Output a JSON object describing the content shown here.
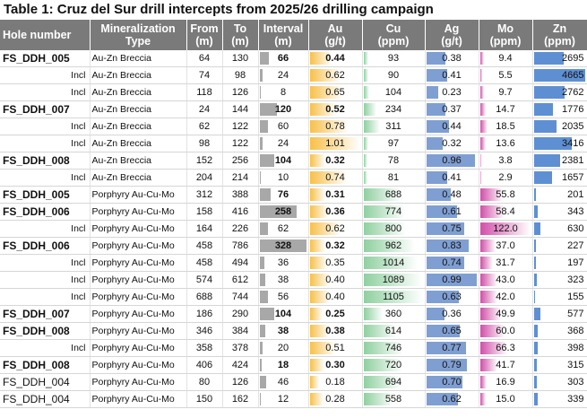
{
  "title": "Table 1: Cruz del Sur drill intercepts from 2025/26 drilling campaign",
  "headers": {
    "hole": "Hole number",
    "type1": "Mineralization",
    "type2": "Type",
    "from1": "From",
    "from2": "(m)",
    "to1": "To",
    "to2": "(m)",
    "int1": "Interval",
    "int2": "(m)",
    "au1": "Au",
    "au2": "(g/t)",
    "cu1": "Cu",
    "cu2": "(ppm)",
    "ag1": "Ag",
    "ag2": "(g/t)",
    "mo1": "Mo",
    "mo2": "(ppm)",
    "zn1": "Zn",
    "zn2": "(ppm)"
  },
  "colors": {
    "interval": "#a8a8a8",
    "au": "#f7c04a",
    "cu": "#8fd0a0",
    "ag": "#7f9fd3",
    "mo": "#d14fa8",
    "zn": "#5f8fd3"
  },
  "rows": [
    {
      "hole": "FS_DDH_005",
      "kind": "main",
      "type": "Au-Zn Breccia",
      "from": "64",
      "to": "130",
      "interval": "66",
      "au": "0.44",
      "cu": "93",
      "ag": "0.38",
      "mo": "9.4",
      "zn": "2695"
    },
    {
      "hole": "Incl",
      "kind": "incl",
      "type": "Au-Zn Breccia",
      "from": "74",
      "to": "98",
      "interval": "24",
      "au": "0.62",
      "cu": "90",
      "ag": "0.41",
      "mo": "5.5",
      "zn": "4665"
    },
    {
      "hole": "Incl",
      "kind": "incl",
      "type": "Au-Zn Breccia",
      "from": "118",
      "to": "126",
      "interval": "8",
      "au": "0.65",
      "cu": "104",
      "ag": "0.23",
      "mo": "9.7",
      "zn": "2762"
    },
    {
      "hole": "FS_DDH_007",
      "kind": "main",
      "type": "Au-Zn Breccia",
      "from": "24",
      "to": "144",
      "interval": "120",
      "au": "0.52",
      "cu": "234",
      "ag": "0.37",
      "mo": "14.7",
      "zn": "1776"
    },
    {
      "hole": "Incl",
      "kind": "incl",
      "type": "Au-Zn Breccia",
      "from": "62",
      "to": "122",
      "interval": "60",
      "au": "0.78",
      "cu": "311",
      "ag": "0.44",
      "mo": "18.5",
      "zn": "2035"
    },
    {
      "hole": "Incl",
      "kind": "incl",
      "type": "Au-Zn Breccia",
      "from": "98",
      "to": "122",
      "interval": "24",
      "au": "1.01",
      "cu": "97",
      "ag": "0.32",
      "mo": "13.6",
      "zn": "3416"
    },
    {
      "hole": "FS_DDH_008",
      "kind": "main",
      "type": "Au-Zn Breccia",
      "from": "152",
      "to": "256",
      "interval": "104",
      "au": "0.32",
      "cu": "78",
      "ag": "0.96",
      "mo": "3.8",
      "zn": "2381"
    },
    {
      "hole": "Incl",
      "kind": "incl",
      "type": "Au-Zn Breccia",
      "from": "204",
      "to": "214",
      "interval": "10",
      "au": "0.74",
      "cu": "81",
      "ag": "0.41",
      "mo": "2.9",
      "zn": "1657"
    },
    {
      "hole": "FS_DDH_005",
      "kind": "main",
      "type": "Porphyry Au-Cu-Mo",
      "from": "312",
      "to": "388",
      "interval": "76",
      "au": "0.31",
      "cu": "688",
      "ag": "0.48",
      "mo": "55.8",
      "zn": "201"
    },
    {
      "hole": "FS_DDH_006",
      "kind": "main",
      "type": "Porphyry Au-Cu-Mo",
      "from": "158",
      "to": "416",
      "interval": "258",
      "au": "0.36",
      "cu": "774",
      "ag": "0.61",
      "mo": "58.4",
      "zn": "343"
    },
    {
      "hole": "Incl",
      "kind": "incl",
      "type": "Porphyry Au-Cu-Mo",
      "from": "164",
      "to": "226",
      "interval": "62",
      "au": "0.62",
      "cu": "800",
      "ag": "0.75",
      "mo": "122.0",
      "zn": "630"
    },
    {
      "hole": "FS_DDH_006",
      "kind": "main",
      "type": "Porphyry Au-Cu-Mo",
      "from": "458",
      "to": "786",
      "interval": "328",
      "au": "0.32",
      "cu": "962",
      "ag": "0.83",
      "mo": "37.0",
      "zn": "227"
    },
    {
      "hole": "Incl",
      "kind": "incl",
      "type": "Porphyry Au-Cu-Mo",
      "from": "458",
      "to": "494",
      "interval": "36",
      "au": "0.35",
      "cu": "1014",
      "ag": "0.74",
      "mo": "31.7",
      "zn": "197"
    },
    {
      "hole": "Incl",
      "kind": "incl",
      "type": "Porphyry Au-Cu-Mo",
      "from": "574",
      "to": "612",
      "interval": "38",
      "au": "0.40",
      "cu": "1089",
      "ag": "0.99",
      "mo": "43.0",
      "zn": "323"
    },
    {
      "hole": "Incl",
      "kind": "incl",
      "type": "Porphyry Au-Cu-Mo",
      "from": "688",
      "to": "744",
      "interval": "56",
      "au": "0.40",
      "cu": "1105",
      "ag": "0.63",
      "mo": "42.0",
      "zn": "155"
    },
    {
      "hole": "FS_DDH_007",
      "kind": "main",
      "type": "Porphyry Au-Cu-Mo",
      "from": "186",
      "to": "290",
      "interval": "104",
      "au": "0.25",
      "cu": "360",
      "ag": "0.36",
      "mo": "49.9",
      "zn": "577"
    },
    {
      "hole": "FS_DDH_008",
      "kind": "main",
      "type": "Porphyry Au-Cu-Mo",
      "from": "346",
      "to": "384",
      "interval": "38",
      "au": "0.38",
      "cu": "614",
      "ag": "0.65",
      "mo": "60.0",
      "zn": "368"
    },
    {
      "hole": "Incl",
      "kind": "incl",
      "type": "Porphyry Au-Cu-Mo",
      "from": "358",
      "to": "378",
      "interval": "20",
      "au": "0.51",
      "cu": "746",
      "ag": "0.77",
      "mo": "66.3",
      "zn": "398"
    },
    {
      "hole": "FS_DDH_008",
      "kind": "main",
      "type": "Porphyry Au-Cu-Mo",
      "from": "406",
      "to": "424",
      "interval": "18",
      "au": "0.30",
      "cu": "720",
      "ag": "0.79",
      "mo": "41.7",
      "zn": "315"
    },
    {
      "hole": "FS_DDH_004",
      "kind": "plain",
      "type": "Porphyry Au-Cu-Mo",
      "from": "80",
      "to": "126",
      "interval": "46",
      "au": "0.18",
      "cu": "694",
      "ag": "0.70",
      "mo": "16.9",
      "zn": "303"
    },
    {
      "hole": "FS_DDH_004",
      "kind": "plain",
      "type": "Porphyry Au-Cu-Mo",
      "from": "150",
      "to": "162",
      "interval": "12",
      "au": "0.28",
      "cu": "558",
      "ag": "0.62",
      "mo": "15.0",
      "zn": "339"
    }
  ]
}
